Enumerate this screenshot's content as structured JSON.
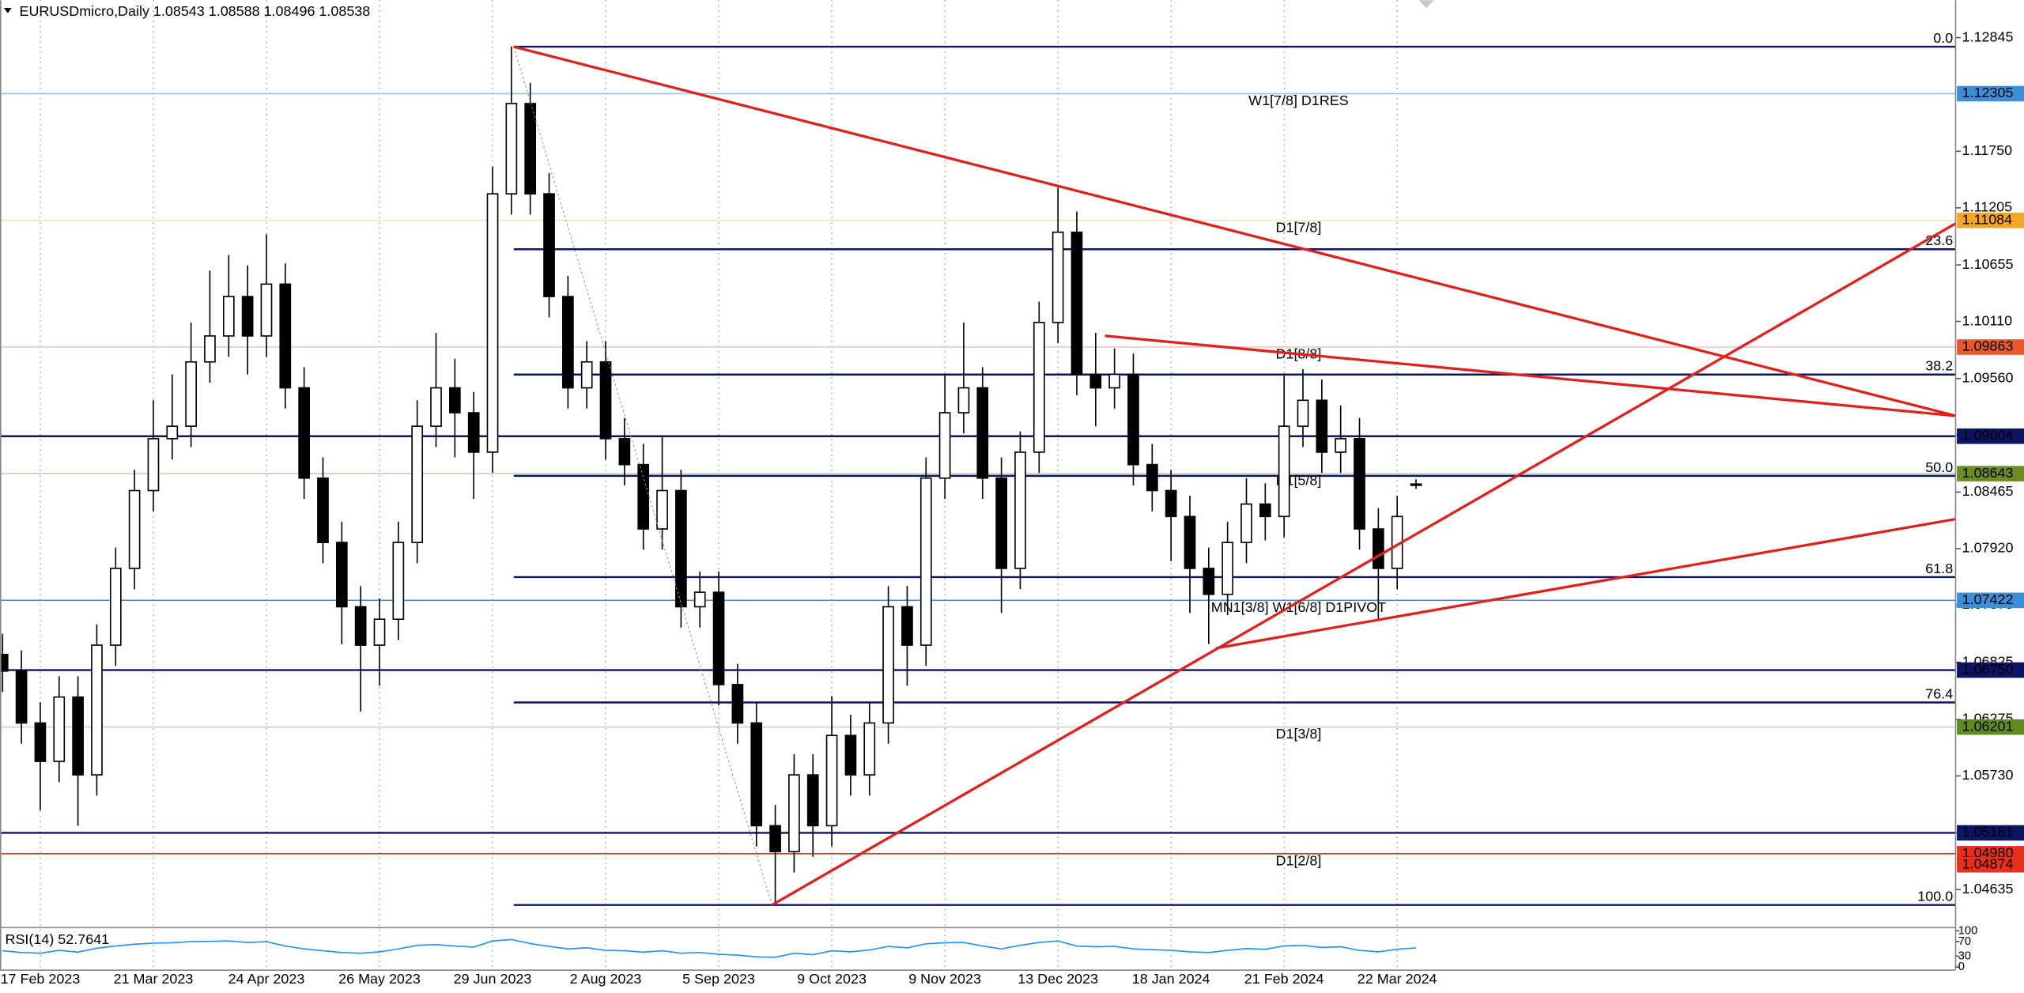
{
  "chart_data": {
    "type": "candlestick",
    "symbol": "EURUSDmicro,Daily",
    "categories": [
      null,
      null,
      "17 Feb 2023",
      null,
      null,
      null,
      null,
      null,
      "21 Mar 2023",
      null,
      null,
      null,
      null,
      null,
      "24 Apr 2023",
      null,
      null,
      null,
      null,
      null,
      "26 May 2023",
      null,
      null,
      null,
      null,
      null,
      "29 Jun 2023",
      null,
      null,
      null,
      null,
      null,
      "2 Aug 2023",
      null,
      null,
      null,
      null,
      null,
      "5 Sep 2023",
      null,
      null,
      null,
      null,
      null,
      "9 Oct 2023",
      null,
      null,
      null,
      null,
      null,
      "9 Nov 2023",
      null,
      null,
      null,
      null,
      null,
      "13 Dec 2023",
      null,
      null,
      null,
      null,
      null,
      "18 Jan 2024",
      null,
      null,
      null,
      null,
      null,
      "21 Feb 2024",
      null,
      null,
      null,
      null,
      null,
      "22 Mar 2024",
      null
    ],
    "open": [
      1.069,
      1.0674,
      1.0624,
      1.0587,
      1.0649,
      1.0574,
      1.0699,
      1.0773,
      1.0848,
      1.0898,
      1.091,
      1.0972,
      1.0997,
      1.1035,
      1.0997,
      1.1047,
      1.0947,
      1.086,
      1.0798,
      1.0736,
      1.0699,
      1.0724,
      1.0798,
      1.091,
      1.0947,
      1.0923,
      1.0885,
      1.1134,
      1.1221,
      1.1134,
      1.1035,
      1.0947,
      1.0972,
      1.0898,
      1.0873,
      1.0811,
      1.0848,
      1.0736,
      1.075,
      1.0661,
      1.0624,
      1.0525,
      1.05,
      1.0574,
      1.0525,
      1.0612,
      1.0574,
      1.0624,
      1.0736,
      1.0699,
      1.086,
      1.0923,
      1.0947,
      1.086,
      1.0773,
      1.0885,
      1.101,
      1.1097,
      1.096,
      1.0947,
      1.096,
      1.0873,
      1.0848,
      1.0823,
      1.0773,
      1.0748,
      1.0798,
      1.0835,
      1.0823,
      1.091,
      1.0935,
      1.0885,
      1.0898,
      1.0811,
      1.0773,
      1.08543
    ],
    "high": [
      1.071,
      1.0694,
      1.0644,
      1.0669,
      1.0669,
      1.0719,
      1.0793,
      1.0868,
      1.0935,
      1.096,
      1.101,
      1.106,
      1.1075,
      1.1065,
      1.1095,
      1.1067,
      1.0967,
      1.088,
      1.0818,
      1.0756,
      1.0744,
      1.0818,
      1.0935,
      1.1,
      1.0975,
      1.0943,
      1.116,
      1.1276,
      1.1241,
      1.1154,
      1.1055,
      1.0992,
      1.0992,
      1.0918,
      1.0893,
      1.09,
      1.0868,
      1.077,
      1.077,
      1.0681,
      1.0644,
      1.0545,
      1.0594,
      1.0594,
      1.065,
      1.0632,
      1.0644,
      1.0756,
      1.0756,
      1.088,
      1.096,
      1.101,
      1.0967,
      1.088,
      1.0905,
      1.103,
      1.114,
      1.1117,
      1.1,
      1.0985,
      1.098,
      1.0893,
      1.0868,
      1.0843,
      1.0793,
      1.0818,
      1.086,
      1.0855,
      1.096,
      1.0965,
      1.0955,
      1.093,
      1.0918,
      1.0831,
      1.0843,
      1.08588
    ],
    "low": [
      1.0654,
      1.0604,
      1.054,
      1.0567,
      1.0525,
      1.0554,
      1.0679,
      1.0753,
      1.0828,
      1.0878,
      1.089,
      1.0952,
      1.0977,
      1.096,
      1.0977,
      1.0927,
      1.084,
      1.0778,
      1.07,
      1.0635,
      1.066,
      1.0704,
      1.0778,
      1.089,
      1.088,
      1.084,
      1.0865,
      1.1114,
      1.1114,
      1.1015,
      1.0927,
      1.0927,
      1.0878,
      1.0853,
      1.0791,
      1.0791,
      1.0716,
      1.0716,
      1.0641,
      1.0604,
      1.0505,
      1.0449,
      1.048,
      1.0495,
      1.0505,
      1.0554,
      1.0554,
      1.0604,
      1.066,
      1.0679,
      1.084,
      1.0903,
      1.084,
      1.073,
      1.0753,
      1.0865,
      1.099,
      1.094,
      1.091,
      1.0927,
      1.0853,
      1.0828,
      1.078,
      1.073,
      1.07,
      1.0728,
      1.0778,
      1.08,
      1.0803,
      1.089,
      1.0865,
      1.0865,
      1.0791,
      1.0723,
      1.0753,
      1.08496
    ],
    "close": [
      1.0674,
      1.0624,
      1.0587,
      1.0649,
      1.0574,
      1.0699,
      1.0773,
      1.0848,
      1.0898,
      1.091,
      1.0972,
      1.0997,
      1.1035,
      1.0997,
      1.1047,
      1.0947,
      1.086,
      1.0798,
      1.0736,
      1.0699,
      1.0724,
      1.0798,
      1.091,
      1.0947,
      1.0923,
      1.0885,
      1.1134,
      1.1221,
      1.1134,
      1.1035,
      1.0947,
      1.0972,
      1.0898,
      1.0873,
      1.0811,
      1.0848,
      1.0736,
      1.075,
      1.0661,
      1.0624,
      1.0525,
      1.05,
      1.0574,
      1.0525,
      1.0612,
      1.0574,
      1.0624,
      1.0736,
      1.0699,
      1.086,
      1.0923,
      1.0947,
      1.086,
      1.0773,
      1.0885,
      1.101,
      1.1097,
      1.096,
      1.0947,
      1.096,
      1.0873,
      1.0848,
      1.0823,
      1.0773,
      1.0748,
      1.0798,
      1.0835,
      1.0823,
      1.091,
      1.0935,
      1.0885,
      1.0898,
      1.0811,
      1.0773,
      1.0823,
      1.08538
    ],
    "up_color": "#ffffff",
    "down_color": "#000000",
    "ylim": [
      1.04274,
      1.13206
    ],
    "yticks": [
      1.12845,
      {
        "value": 1.1175,
        "label": "1.11750"
      },
      1.11205,
      1.10655,
      {
        "value": 1.1011,
        "label": "1.10110"
      },
      {
        "value": 1.0956,
        "label": "1.09560"
      },
      1.09015,
      1.08465,
      {
        "value": 1.0792,
        "label": "1.07920"
      },
      1.07375,
      1.06825,
      1.06275,
      {
        "value": 1.0573,
        "label": "1.05730"
      },
      {
        "value": 1.0518,
        "label": "1.05180"
      },
      1.04635
    ],
    "levels": [
      {
        "price": 1.12305,
        "color": "#3b8fd9",
        "line_color": "#8cc6ea",
        "text": "W1[7/8] D1RES",
        "text_color": "#4a9fd5"
      },
      {
        "price": 1.11084,
        "color": "#f5a623",
        "line_color": "#eee6b8",
        "text": "D1[7/8]",
        "text_color": "#e8a020"
      },
      {
        "price": 1.09863,
        "color": "#e8582a",
        "line_color": "#e8c8b8",
        "text": "D1[8/8]",
        "text_color": "#e8602a"
      },
      {
        "price": 1.09004,
        "color": "#0c1464",
        "line_color": "#0c1464"
      },
      {
        "price": 1.08643,
        "color": "#6b8e23",
        "line_color": "#c8d2b4",
        "text": "D1[5/8]",
        "text_color": "#8a9a40"
      },
      {
        "price": 1.07422,
        "color": "#3b8fd9",
        "line_color": "#3b8fd9",
        "text": "MN1[3/8] W1[6/8] D1PIVOT",
        "text_color": "#3b8fd9"
      },
      {
        "price": {
          "value": 1.0675,
          "label": "1.06750"
        },
        "color": "#0c1464",
        "line_color": "#0c1464"
      },
      {
        "price": 1.06201,
        "color": "#5e8c1e",
        "line_color": "#c8d2b4",
        "text": "D1[3/8]",
        "text_color": "#8a9a40"
      },
      {
        "price": 1.05181,
        "color": "#0c1464",
        "line_color": "#0c1464"
      },
      {
        "price": {
          "value": 1.0498,
          "label": "1.04980"
        },
        "color": "#e8301c",
        "line_color": "#e8301c",
        "text": "D1[2/8]",
        "text_color": "#e8602a"
      },
      {
        "price": 1.04874,
        "color": "#e8301c"
      }
    ],
    "fib_levels": [
      {
        "label": "0.0",
        "price": 1.12758
      },
      {
        "label": "23.6",
        "price": 1.10806
      },
      {
        "label": "38.2",
        "price": 1.09598
      },
      {
        "label": "50.0",
        "price": 1.08622
      },
      {
        "label": "61.8",
        "price": 1.07646
      },
      {
        "label": "76.4",
        "price": 1.06438
      },
      {
        "label": "100.0",
        "price": 1.04486
      }
    ],
    "rsi": {
      "title": "RSI(14)",
      "color": "#1e90ff",
      "ylim": [
        0,
        100
      ],
      "yticks": [
        100,
        70,
        30,
        0
      ],
      "values": [
        45,
        40,
        38,
        46,
        41,
        52,
        58,
        63,
        66,
        67,
        70,
        71,
        72,
        68,
        70,
        58,
        50,
        45,
        40,
        38,
        42,
        50,
        60,
        62,
        58,
        55,
        72,
        76,
        65,
        57,
        50,
        53,
        46,
        45,
        41,
        45,
        38,
        40,
        35,
        33,
        28,
        27,
        38,
        34,
        45,
        42,
        47,
        57,
        53,
        64,
        67,
        68,
        58,
        50,
        60,
        68,
        72,
        58,
        56,
        57,
        50,
        48,
        46,
        42,
        40,
        46,
        51,
        49,
        58,
        60,
        54,
        56,
        46,
        42,
        49,
        52.7641
      ]
    }
  }
}
